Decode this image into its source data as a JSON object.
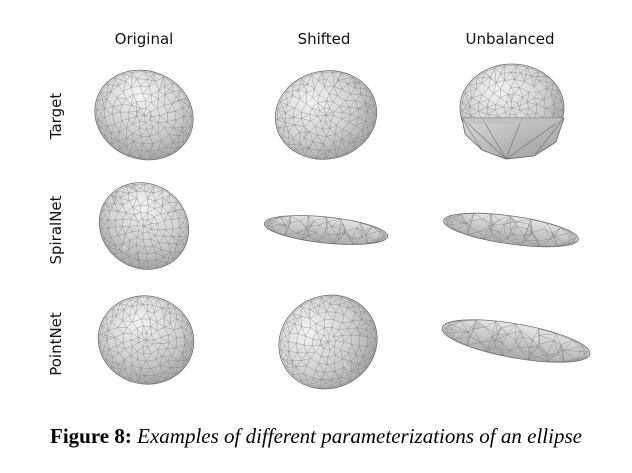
{
  "figure": {
    "columns": [
      "Original",
      "Shifted",
      "Unbalanced"
    ],
    "rows": [
      "Target",
      "SpiralNet",
      "PointNet"
    ]
  },
  "caption": {
    "label": "Figure 8:",
    "text": "Examples of different parameterizations of an ellipse"
  },
  "colors": {
    "mesh_fill": "#cfcfcf",
    "mesh_edge": "#7a7a7a",
    "shadow": "#9a9a9a"
  }
}
